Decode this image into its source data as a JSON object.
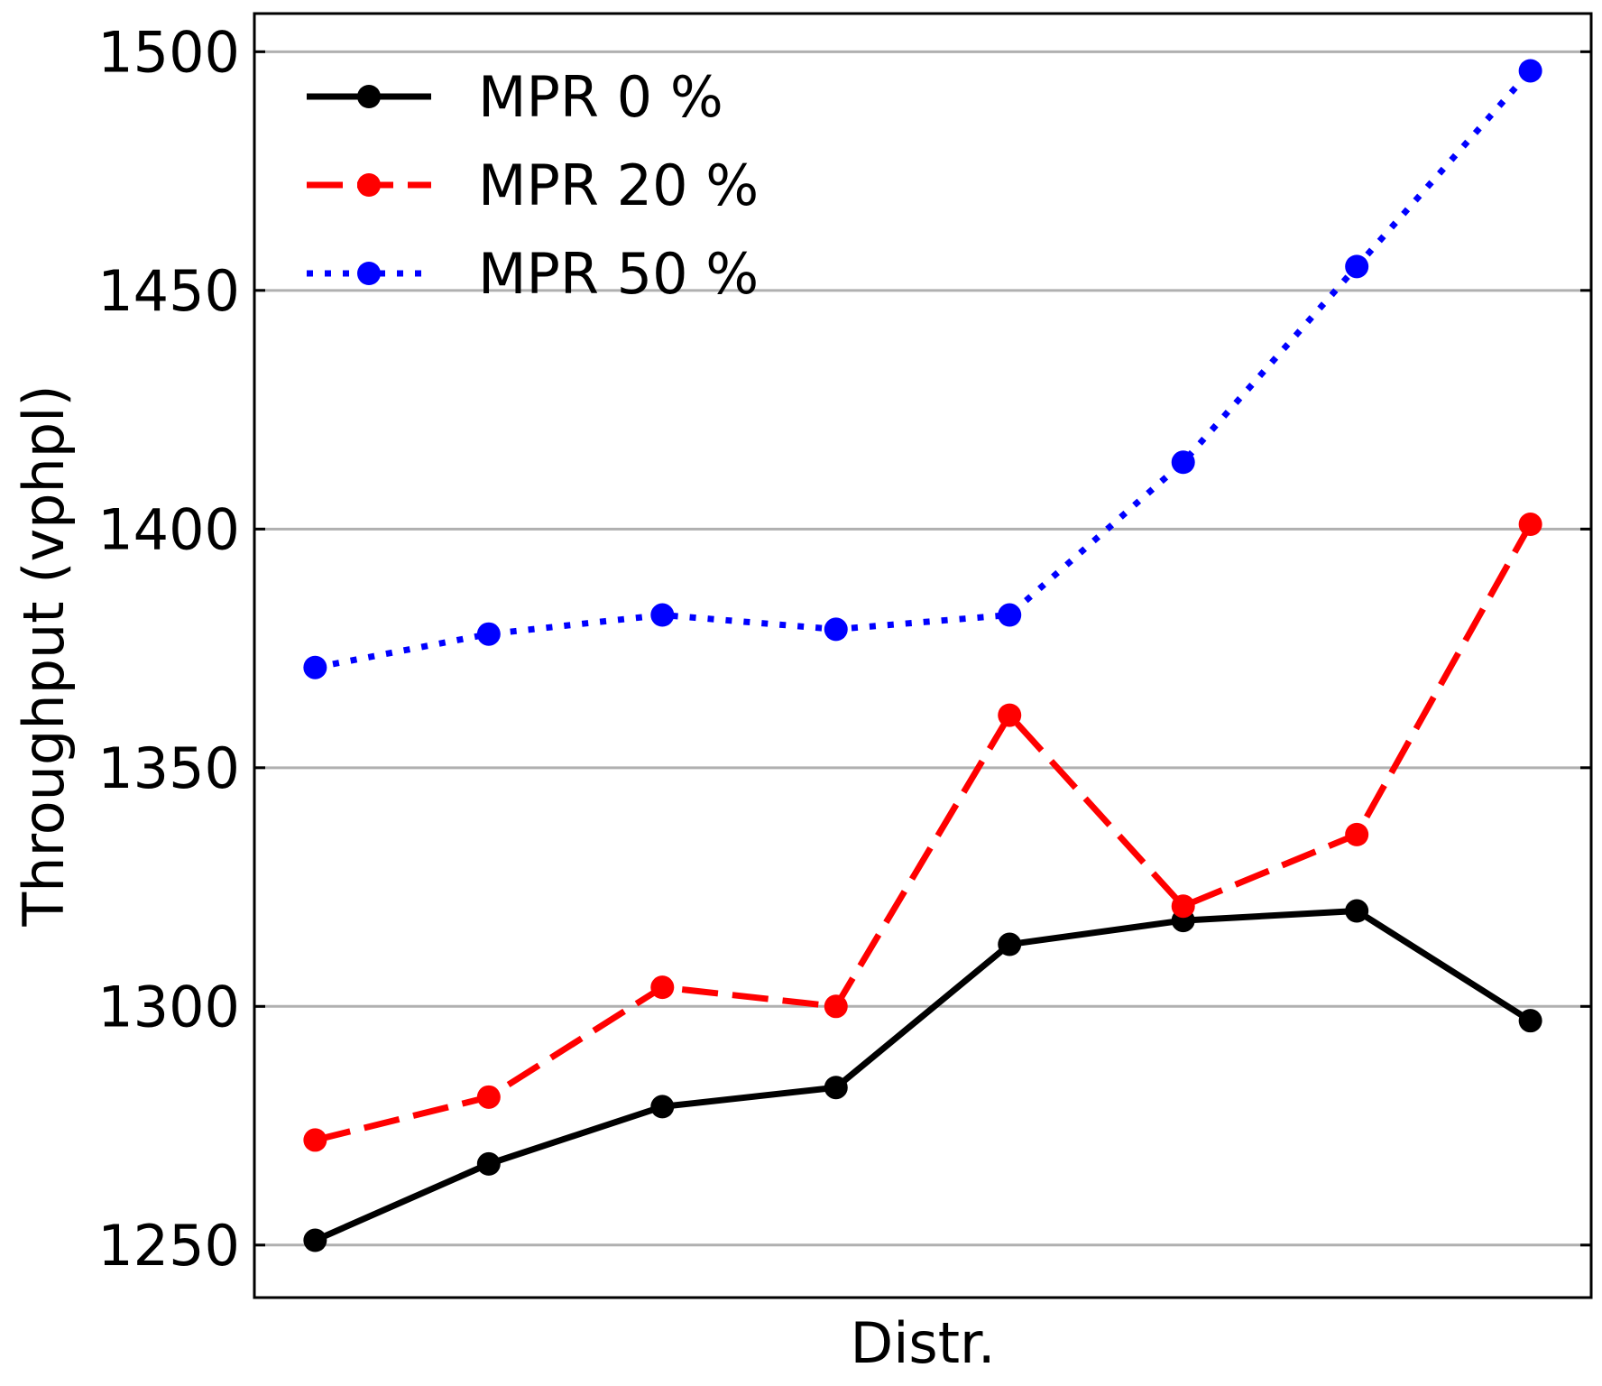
{
  "chart_data": {
    "type": "line",
    "title": "",
    "xlabel": "Distr.",
    "ylabel": "Throughput (vphpl)",
    "ylim": [
      1239,
      1508
    ],
    "yticks": [
      1250,
      1300,
      1350,
      1400,
      1450,
      1500
    ],
    "grid": "horizontal",
    "legend_position": "top-left",
    "x": [
      1,
      2,
      3,
      4,
      5,
      6,
      7,
      8
    ],
    "xlim": [
      0.65,
      8.35
    ],
    "series": [
      {
        "name": "MPR 0 %",
        "color": "#000000",
        "dash": "solid",
        "values": [
          1251,
          1267,
          1279,
          1283,
          1313,
          1318,
          1320,
          1297
        ]
      },
      {
        "name": "MPR 20 %",
        "color": "#ff0000",
        "dash": "dashed",
        "values": [
          1272,
          1281,
          1304,
          1300,
          1361,
          1321,
          1336,
          1401
        ]
      },
      {
        "name": "MPR 50 %",
        "color": "#0000ff",
        "dash": "dotted",
        "values": [
          1371,
          1378,
          1382,
          1379,
          1382,
          1414,
          1455,
          1496
        ]
      }
    ]
  }
}
